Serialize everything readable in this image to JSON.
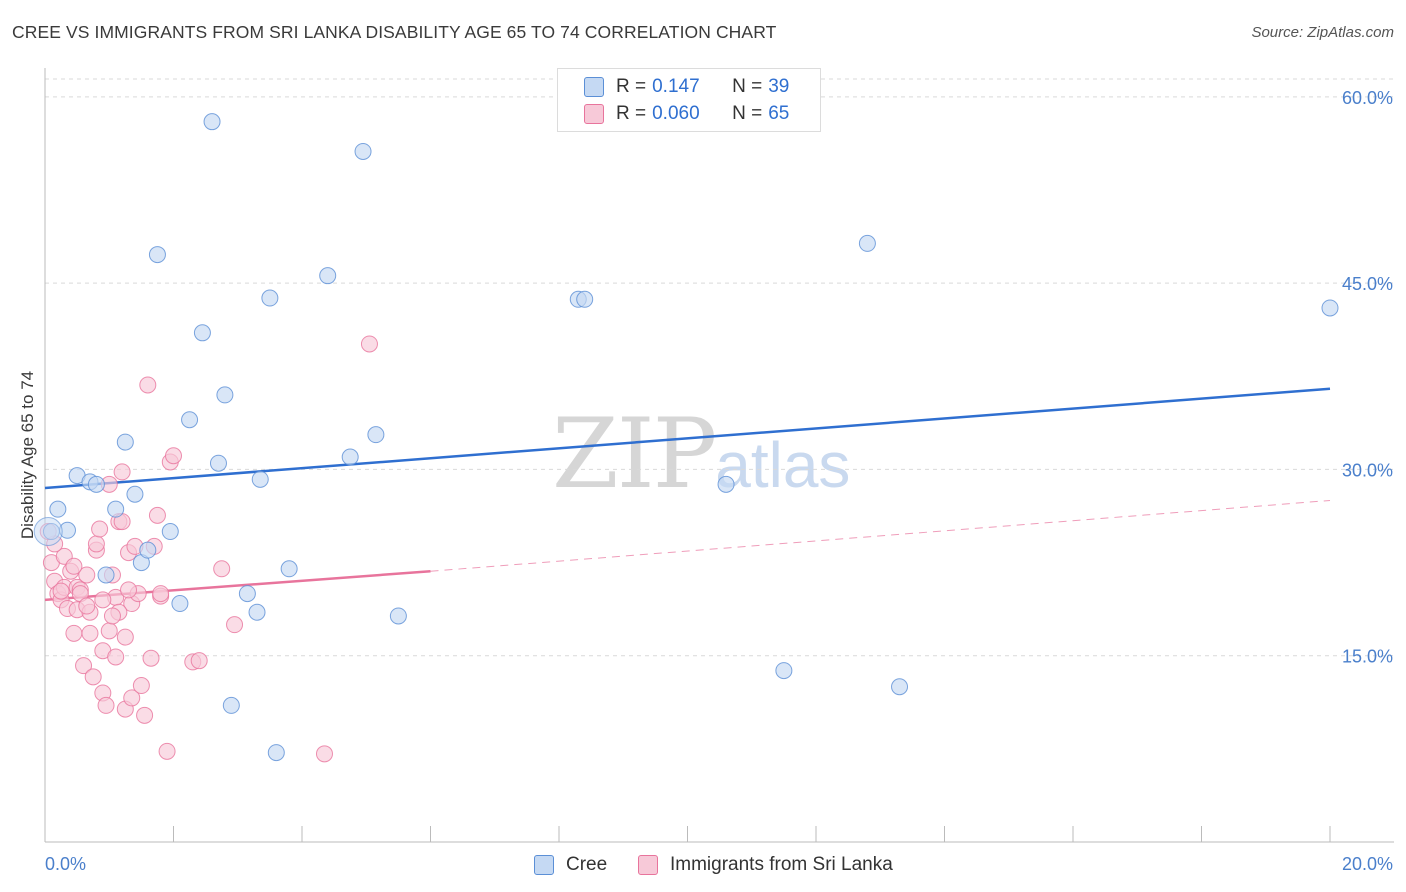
{
  "title": "CREE VS IMMIGRANTS FROM SRI LANKA DISABILITY AGE 65 TO 74 CORRELATION CHART",
  "source": "Source: ZipAtlas.com",
  "watermark": {
    "zip": "ZIP",
    "atlas": "atlas"
  },
  "legend": {
    "rows": [
      {
        "r_label": "R =",
        "r_value": "0.147",
        "n_label": "N =",
        "n_value": "39"
      },
      {
        "r_label": "R =",
        "r_value": "0.060",
        "n_label": "N =",
        "n_value": "65"
      }
    ]
  },
  "chart_data": {
    "type": "scatter",
    "title": "CREE VS IMMIGRANTS FROM SRI LANKA DISABILITY AGE 65 TO 74 CORRELATION CHART",
    "xlabel": "",
    "ylabel": "Disability Age 65 to 74",
    "xlim": [
      0,
      20
    ],
    "ylim": [
      0,
      62
    ],
    "x_tick_labels": [
      "0.0%",
      "20.0%"
    ],
    "y_ticks": [
      15,
      30,
      45,
      60
    ],
    "y_tick_labels": [
      "15.0%",
      "30.0%",
      "45.0%",
      "60.0%"
    ],
    "colors": {
      "cree": "#5b8fd6",
      "cree_fill": "#c5d9f3",
      "sri": "#e8749c",
      "sri_fill": "#f7c9d8",
      "cree_line": "#2f6fd0",
      "sri_line": "#e8749c"
    },
    "series": [
      {
        "name": "Cree",
        "trend": {
          "x": [
            0,
            20
          ],
          "y": [
            28.5,
            36.5
          ],
          "dashed_from": null
        },
        "points": [
          [
            0.1,
            25.0
          ],
          [
            0.2,
            26.8
          ],
          [
            0.35,
            25.1
          ],
          [
            0.5,
            29.5
          ],
          [
            0.7,
            29.0
          ],
          [
            0.8,
            28.8
          ],
          [
            0.95,
            21.5
          ],
          [
            1.1,
            26.8
          ],
          [
            1.25,
            32.2
          ],
          [
            1.4,
            28.0
          ],
          [
            1.5,
            22.5
          ],
          [
            1.6,
            23.5
          ],
          [
            1.75,
            47.3
          ],
          [
            1.95,
            25.0
          ],
          [
            2.1,
            19.2
          ],
          [
            2.25,
            34.0
          ],
          [
            2.45,
            41.0
          ],
          [
            2.6,
            58.0
          ],
          [
            2.7,
            30.5
          ],
          [
            2.8,
            36.0
          ],
          [
            2.9,
            11.0
          ],
          [
            3.15,
            20.0
          ],
          [
            3.3,
            18.5
          ],
          [
            3.35,
            29.2
          ],
          [
            3.5,
            43.8
          ],
          [
            3.6,
            7.2
          ],
          [
            3.8,
            22.0
          ],
          [
            4.4,
            45.6
          ],
          [
            4.75,
            31.0
          ],
          [
            4.95,
            55.6
          ],
          [
            5.15,
            32.8
          ],
          [
            5.5,
            18.2
          ],
          [
            8.3,
            43.7
          ],
          [
            8.4,
            43.7
          ],
          [
            10.6,
            28.8
          ],
          [
            11.5,
            13.8
          ],
          [
            12.8,
            48.2
          ],
          [
            13.3,
            12.5
          ],
          [
            20.0,
            43.0
          ]
        ]
      },
      {
        "name": "Immigrants from Sri Lanka",
        "trend": {
          "x": [
            0,
            6
          ],
          "y": [
            19.5,
            21.8
          ],
          "dashed_to": {
            "x": 20,
            "y": 27.5
          }
        },
        "points": [
          [
            0.1,
            22.5
          ],
          [
            0.15,
            21.0
          ],
          [
            0.2,
            20.0
          ],
          [
            0.25,
            19.5
          ],
          [
            0.3,
            23.0
          ],
          [
            0.3,
            20.5
          ],
          [
            0.35,
            18.8
          ],
          [
            0.4,
            21.8
          ],
          [
            0.45,
            16.8
          ],
          [
            0.5,
            20.5
          ],
          [
            0.5,
            18.7
          ],
          [
            0.55,
            20.3
          ],
          [
            0.6,
            14.2
          ],
          [
            0.65,
            21.5
          ],
          [
            0.7,
            16.8
          ],
          [
            0.7,
            18.5
          ],
          [
            0.75,
            13.3
          ],
          [
            0.8,
            23.5
          ],
          [
            0.8,
            24.0
          ],
          [
            0.85,
            25.2
          ],
          [
            0.9,
            15.4
          ],
          [
            0.9,
            12.0
          ],
          [
            0.95,
            11.0
          ],
          [
            1.0,
            28.8
          ],
          [
            1.0,
            17.0
          ],
          [
            1.05,
            21.5
          ],
          [
            1.1,
            14.9
          ],
          [
            1.1,
            19.7
          ],
          [
            1.15,
            25.8
          ],
          [
            1.2,
            29.8
          ],
          [
            1.2,
            25.8
          ],
          [
            1.25,
            16.5
          ],
          [
            1.25,
            10.7
          ],
          [
            1.3,
            23.3
          ],
          [
            1.35,
            11.6
          ],
          [
            1.35,
            19.2
          ],
          [
            1.4,
            23.8
          ],
          [
            1.45,
            20.0
          ],
          [
            1.5,
            12.6
          ],
          [
            1.55,
            10.2
          ],
          [
            1.6,
            36.8
          ],
          [
            1.65,
            14.8
          ],
          [
            1.7,
            23.8
          ],
          [
            1.75,
            26.3
          ],
          [
            1.8,
            19.8
          ],
          [
            1.8,
            20.0
          ],
          [
            1.9,
            7.3
          ],
          [
            1.95,
            30.6
          ],
          [
            2.0,
            31.1
          ],
          [
            2.3,
            14.5
          ],
          [
            2.4,
            14.6
          ],
          [
            2.75,
            22.0
          ],
          [
            2.95,
            17.5
          ],
          [
            4.35,
            7.1
          ],
          [
            5.05,
            40.1
          ],
          [
            0.15,
            24.0
          ],
          [
            0.55,
            20.0
          ],
          [
            0.9,
            19.5
          ],
          [
            1.15,
            18.5
          ],
          [
            0.05,
            25.0
          ],
          [
            0.65,
            19.0
          ],
          [
            1.05,
            18.2
          ],
          [
            0.45,
            22.2
          ],
          [
            1.3,
            20.3
          ],
          [
            0.25,
            20.2
          ]
        ]
      }
    ]
  },
  "bottom_legend": [
    "Cree",
    "Immigrants from Sri Lanka"
  ]
}
